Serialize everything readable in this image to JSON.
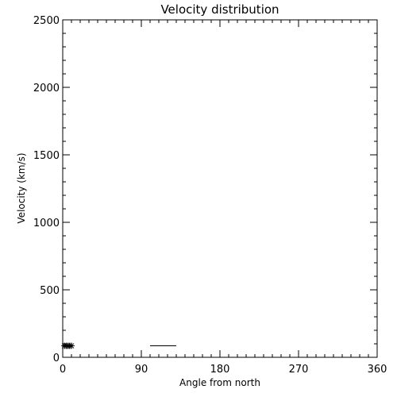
{
  "chart_data": {
    "type": "scatter",
    "title": "Velocity distribution",
    "xlabel": "Angle from north",
    "ylabel": "Velocity (km/s)",
    "xlim": [
      0,
      360
    ],
    "ylim": [
      0,
      2500
    ],
    "x_ticks": [
      0,
      90,
      180,
      270,
      360
    ],
    "x_tick_labels": [
      "0",
      "90",
      "180",
      "270",
      "360"
    ],
    "x_minor_step": 10,
    "y_ticks": [
      0,
      500,
      1000,
      1500,
      2000,
      2500
    ],
    "y_tick_labels": [
      "0",
      "500",
      "1000",
      "1500",
      "2000",
      "2500"
    ],
    "y_minor_step": 100,
    "grid": false,
    "series": [
      {
        "marker": "asterisk",
        "x": [
          2,
          4,
          6,
          8,
          10
        ],
        "y": [
          85,
          85,
          85,
          85,
          85
        ]
      }
    ],
    "segments": [
      {
        "x0": 100,
        "x1": 130,
        "y": 85
      }
    ],
    "colors": {
      "foreground": "#000000",
      "background": "#ffffff"
    }
  }
}
